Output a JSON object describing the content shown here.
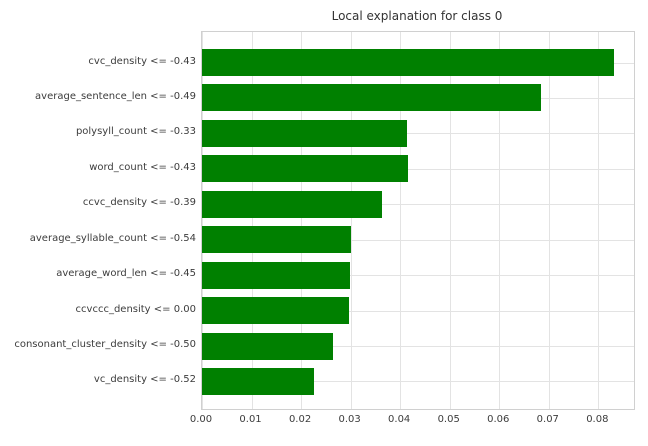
{
  "chart_data": {
    "type": "bar",
    "orientation": "horizontal",
    "title": "Local explanation for class 0",
    "categories": [
      "cvc_density <= -0.43",
      "average_sentence_len <= -0.49",
      "polysyll_count <= -0.33",
      "word_count <= -0.43",
      "ccvc_density <= -0.39",
      "average_syllable_count <= -0.54",
      "average_word_len <= -0.45",
      "ccvccc_density <= 0.00",
      "consonant_cluster_density <= -0.50",
      "vc_density <= -0.52"
    ],
    "values": [
      0.0832,
      0.0684,
      0.0414,
      0.0415,
      0.0363,
      0.03,
      0.0299,
      0.0296,
      0.0264,
      0.0227
    ],
    "xticks": [
      0.0,
      0.01,
      0.02,
      0.03,
      0.04,
      0.05,
      0.06,
      0.07,
      0.08
    ],
    "xtick_labels": [
      "0.00",
      "0.01",
      "0.02",
      "0.03",
      "0.04",
      "0.05",
      "0.06",
      "0.07",
      "0.08"
    ],
    "xlim": [
      0,
      0.0872
    ],
    "xlabel": "",
    "ylabel": "",
    "grid": true,
    "legend": false,
    "bar_color": "#008000",
    "grid_color": "#e3e3e3",
    "frame_color": "#d0d0d0",
    "text_color": "#3c3c3c"
  }
}
